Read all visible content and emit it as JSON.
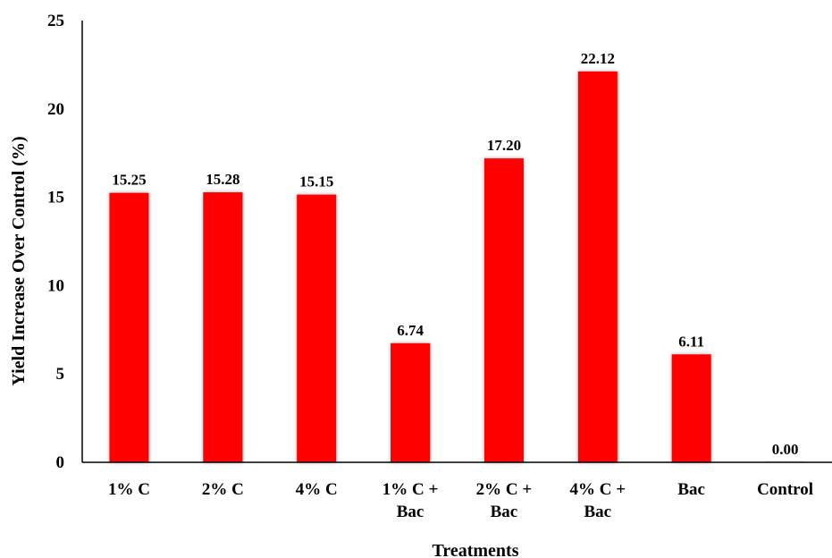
{
  "chart_data": {
    "type": "bar",
    "categories": [
      [
        "1% C"
      ],
      [
        "2% C"
      ],
      [
        "4% C"
      ],
      [
        "1% C +",
        "Bac"
      ],
      [
        "2% C +",
        "Bac"
      ],
      [
        "4% C +",
        "Bac"
      ],
      [
        "Bac"
      ],
      [
        "Control"
      ]
    ],
    "values": [
      15.25,
      15.28,
      15.15,
      6.74,
      17.2,
      22.12,
      6.11,
      0.0
    ],
    "data_labels": [
      "15.25",
      "15.28",
      "15.15",
      "6.74",
      "17.20",
      "22.12",
      "6.11",
      "0.00"
    ],
    "xlabel": "Treatments",
    "ylabel": "Yield Increase Over Control (%)",
    "ylim": [
      0,
      25
    ],
    "yticks": [
      0,
      5,
      10,
      15,
      20,
      25
    ],
    "bar_color": "#ff0000",
    "grid": false,
    "legend": "none"
  }
}
